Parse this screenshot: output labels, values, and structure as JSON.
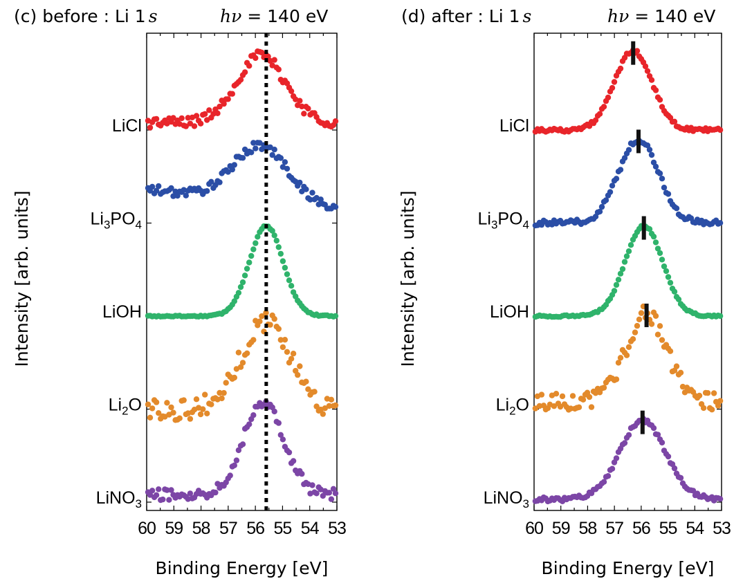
{
  "chart_data": [
    {
      "type": "scatter",
      "panel_label": "(c) before : Li 1",
      "orbital": "s",
      "energy_prefix": "hν",
      "energy_suffix": " = 140 eV",
      "xlabel": "Binding Energy [eV]",
      "ylabel": "Intensity [arb. units]",
      "xlim": [
        60,
        53
      ],
      "x_reversed": true,
      "xticks": [
        "60",
        "59",
        "58",
        "57",
        "56",
        "55",
        "54",
        "53"
      ],
      "grid": false,
      "reference_line": {
        "style": "dotted",
        "x": 55.6
      },
      "series": [
        {
          "name_main": "LiCl",
          "name_sub": "",
          "name_tail": "",
          "color": "#e8252a",
          "offset": 4.0,
          "center": 55.8,
          "width": 0.9,
          "amplitude": 0.72,
          "baseline_slope": 0.0,
          "background": 0.08,
          "noise": 0.06
        },
        {
          "name_main": "Li",
          "name_sub": "3",
          "name_tail": "PO",
          "name_sub2": "4",
          "color": "#2b4ea6",
          "offset": 3.0,
          "center": 55.8,
          "width": 1.0,
          "amplitude": 0.6,
          "baseline_slope": 0.03,
          "background": 0.15,
          "noise": 0.05
        },
        {
          "name_main": "LiOH",
          "name_sub": "",
          "name_tail": "",
          "color": "#2fb36b",
          "offset": 2.0,
          "center": 55.6,
          "width": 0.62,
          "amplitude": 0.97,
          "baseline_slope": 0.0,
          "background": 0.0,
          "noise": 0.008
        },
        {
          "name_main": "Li",
          "name_sub": "2",
          "name_tail": "O",
          "color": "#e38a2b",
          "offset": 1.0,
          "center": 55.6,
          "width": 0.9,
          "amplitude": 0.95,
          "baseline_slope": 0.0,
          "background": 0.0,
          "noise": 0.12
        },
        {
          "name_main": "LiNO",
          "name_sub": "3",
          "name_tail": "",
          "color": "#7c46a6",
          "offset": 0.0,
          "center": 55.7,
          "width": 0.75,
          "amplitude": 1.0,
          "baseline_slope": 0.0,
          "background": 0.08,
          "noise": 0.06
        }
      ]
    },
    {
      "type": "scatter",
      "panel_label": "(d) after : Li 1",
      "orbital": "s",
      "energy_prefix": "hν",
      "energy_suffix": " = 140 eV",
      "xlabel": "Binding Energy [eV]",
      "ylabel": "Intensity [arb. units]",
      "xlim": [
        60,
        53
      ],
      "x_reversed": true,
      "xticks": [
        "60",
        "59",
        "58",
        "57",
        "56",
        "55",
        "54",
        "53"
      ],
      "grid": false,
      "peak_markers": "vertical bars",
      "series": [
        {
          "name_main": "LiCl",
          "name_sub": "",
          "name_tail": "",
          "color": "#e8252a",
          "offset": 4.0,
          "center": 56.3,
          "width": 0.7,
          "amplitude": 0.85,
          "baseline_slope": 0.0,
          "background": 0.0,
          "noise": 0.02,
          "marker_x": 56.3
        },
        {
          "name_main": "Li",
          "name_sub": "3",
          "name_tail": "PO",
          "name_sub2": "4",
          "color": "#2b4ea6",
          "offset": 3.0,
          "center": 56.1,
          "width": 0.75,
          "amplitude": 0.9,
          "baseline_slope": 0.0,
          "background": 0.0,
          "noise": 0.03,
          "marker_x": 56.1
        },
        {
          "name_main": "LiOH",
          "name_sub": "",
          "name_tail": "",
          "color": "#2fb36b",
          "offset": 2.0,
          "center": 55.9,
          "width": 0.7,
          "amplitude": 0.97,
          "baseline_slope": 0.0,
          "background": 0.0,
          "noise": 0.01,
          "marker_x": 55.9
        },
        {
          "name_main": "Li",
          "name_sub": "2",
          "name_tail": "O",
          "color": "#e38a2b",
          "offset": 1.0,
          "center": 55.8,
          "width": 0.75,
          "amplitude": 0.95,
          "baseline_slope": 0.0,
          "background": 0.08,
          "noise": 0.09,
          "marker_x": 55.8
        },
        {
          "name_main": "LiNO",
          "name_sub": "3",
          "name_tail": "",
          "color": "#7c46a6",
          "offset": 0.0,
          "center": 55.95,
          "width": 0.85,
          "amplitude": 0.85,
          "baseline_slope": 0.0,
          "background": 0.03,
          "noise": 0.025,
          "marker_x": 55.95
        }
      ]
    }
  ]
}
